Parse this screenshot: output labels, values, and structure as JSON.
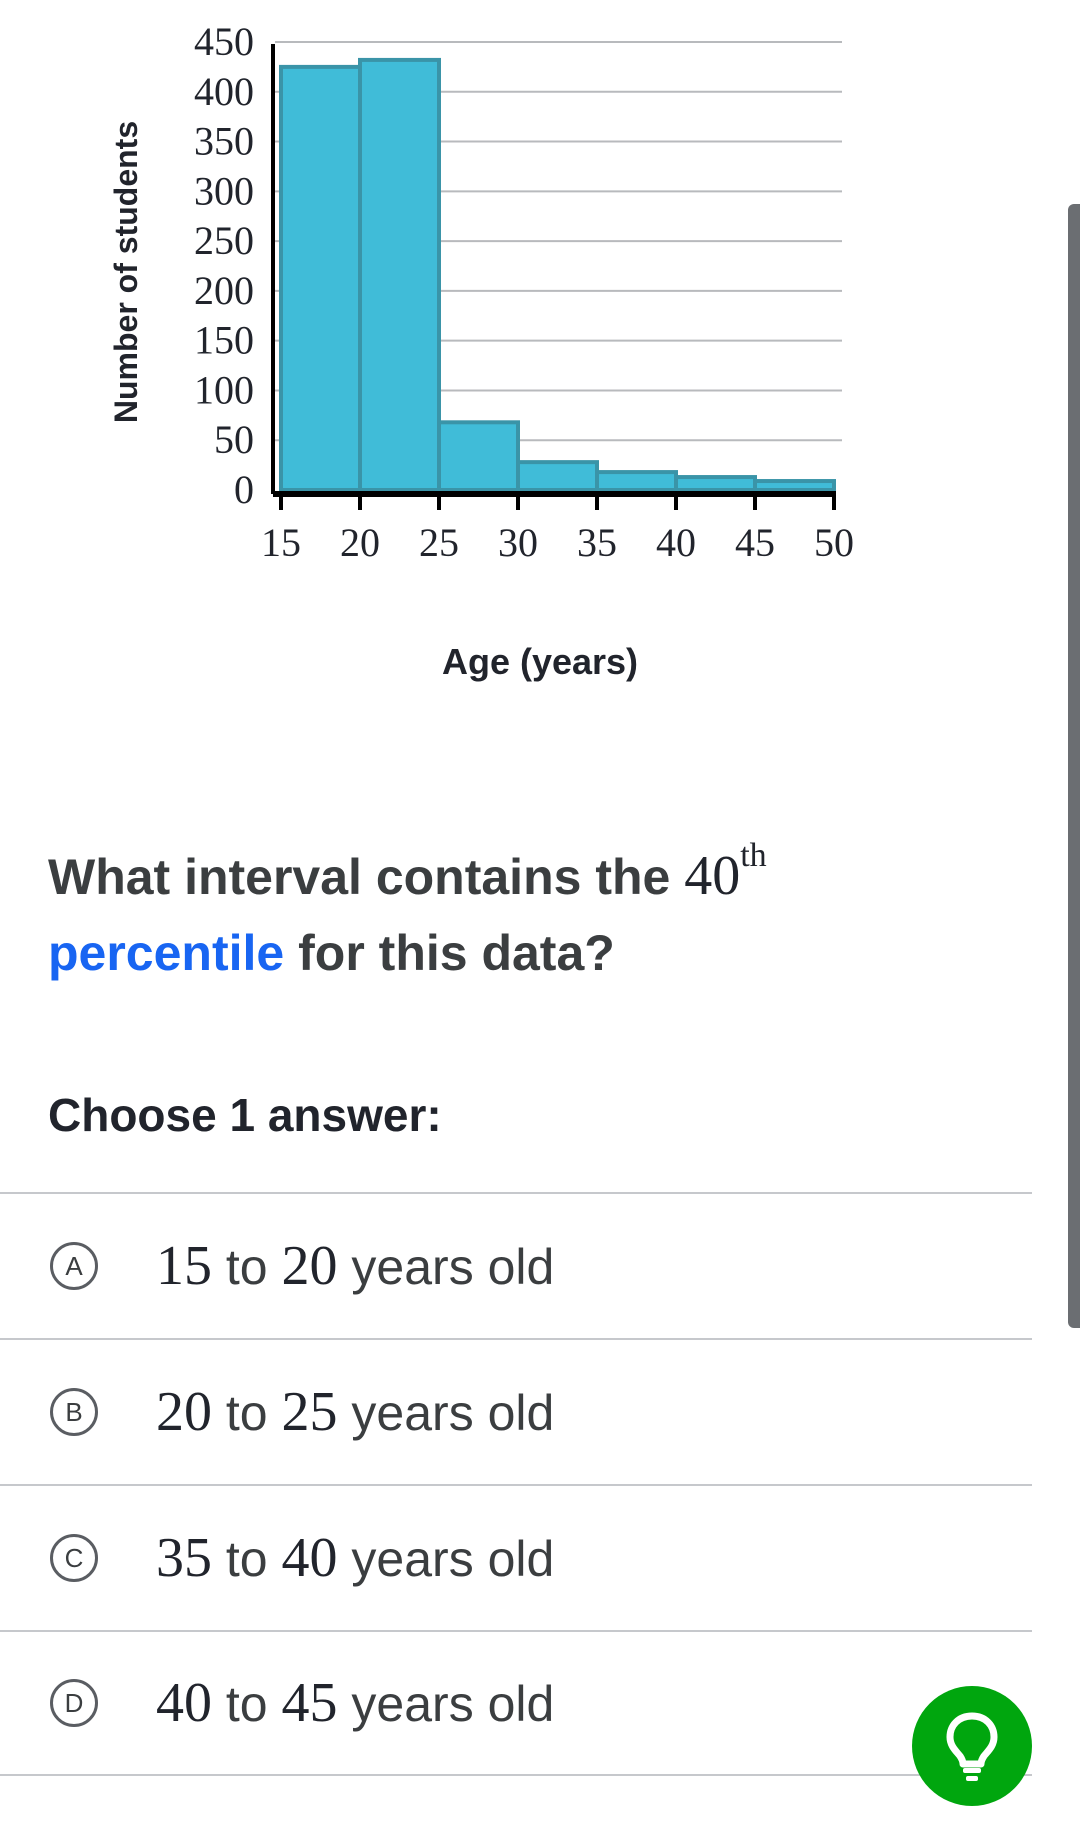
{
  "chart_data": {
    "type": "bar",
    "bin_edges": [
      15,
      20,
      25,
      30,
      35,
      40,
      45,
      50
    ],
    "values": [
      425,
      432,
      68,
      28,
      18,
      13,
      9
    ],
    "xlabel": "Age (years)",
    "ylabel": "Number of students",
    "ylim": [
      0,
      450
    ],
    "yticks": [
      0,
      50,
      100,
      150,
      200,
      250,
      300,
      350,
      400,
      450
    ],
    "xticks": [
      15,
      20,
      25,
      30,
      35,
      40,
      45,
      50
    ],
    "grid": true,
    "bar_color": "#40bcd8",
    "bar_edge_color": "#3a94a8"
  },
  "question": {
    "prefix": "What interval contains the",
    "ordinal_number": "40",
    "ordinal_suffix": "th",
    "link_text": "percentile",
    "suffix": "for this data?"
  },
  "choose_label": "Choose 1 answer:",
  "choices": [
    {
      "letter": "A",
      "from": "15",
      "to_word": "to",
      "to": "20",
      "unit": "years old"
    },
    {
      "letter": "B",
      "from": "20",
      "to_word": "to",
      "to": "25",
      "unit": "years old"
    },
    {
      "letter": "C",
      "from": "35",
      "to_word": "to",
      "to": "40",
      "unit": "years old"
    },
    {
      "letter": "D",
      "from": "40",
      "to_word": "to",
      "to": "45",
      "unit": "years old"
    }
  ],
  "colors": {
    "link": "#1865f2",
    "hint_button": "#00a60e",
    "text": "#3b3e40"
  },
  "hint_icon": "lightbulb-icon"
}
